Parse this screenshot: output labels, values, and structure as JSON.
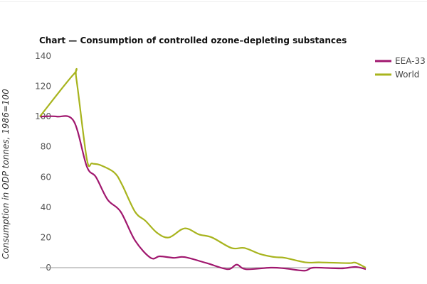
{
  "chart_data": {
    "type": "line",
    "title": "Chart — Consumption of controlled ozone–depleting substances",
    "xlabel": "",
    "ylabel": "Consumption in ODP tonnes, 1986=100",
    "xlim": [
      1986,
      2011
    ],
    "ylim": [
      0,
      140
    ],
    "yticks": [
      "0",
      "20",
      "40",
      "60",
      "80",
      "100",
      "120",
      "140"
    ],
    "legend_position": "top-right",
    "series": [
      {
        "name": "EEA-33",
        "color": "#a0176e",
        "points": [
          [
            1986,
            100
          ],
          [
            1987.3,
            100
          ],
          [
            1988.6,
            97
          ],
          [
            1989.6,
            67
          ],
          [
            1990.3,
            60
          ],
          [
            1991.2,
            45
          ],
          [
            1992.2,
            37
          ],
          [
            1993.3,
            18
          ],
          [
            1994.5,
            6.5
          ],
          [
            1995.2,
            7.5
          ],
          [
            1996.3,
            6.5
          ],
          [
            1997.1,
            7
          ],
          [
            1998.8,
            3
          ],
          [
            2000.4,
            -1
          ],
          [
            2001.1,
            2
          ],
          [
            2001.8,
            -1
          ],
          [
            2003.7,
            0
          ],
          [
            2004.8,
            -0.5
          ],
          [
            2006.3,
            -2
          ],
          [
            2007.0,
            0
          ],
          [
            2009.1,
            -0.5
          ],
          [
            2010.2,
            0.5
          ],
          [
            2011,
            -1
          ]
        ]
      },
      {
        "name": "World",
        "color": "#a8b41e",
        "points": [
          [
            1986,
            100
          ],
          [
            1988.6,
            128
          ],
          [
            1988.8,
            125
          ],
          [
            1989.6,
            72
          ],
          [
            1990.0,
            69
          ],
          [
            1990.6,
            68
          ],
          [
            1991.7,
            63
          ],
          [
            1992.3,
            55
          ],
          [
            1993.3,
            37
          ],
          [
            1994.1,
            31
          ],
          [
            1995.0,
            23
          ],
          [
            1995.9,
            20
          ],
          [
            1997.1,
            26
          ],
          [
            1998.2,
            22
          ],
          [
            1999.2,
            20
          ],
          [
            2000.7,
            13
          ],
          [
            2001.7,
            13
          ],
          [
            2002.9,
            9
          ],
          [
            2004.0,
            7
          ],
          [
            2004.8,
            6.5
          ],
          [
            2006.4,
            3.5
          ],
          [
            2007.5,
            3.5
          ],
          [
            2009.7,
            3
          ],
          [
            2010.2,
            3.3
          ],
          [
            2011,
            0
          ]
        ]
      }
    ]
  }
}
